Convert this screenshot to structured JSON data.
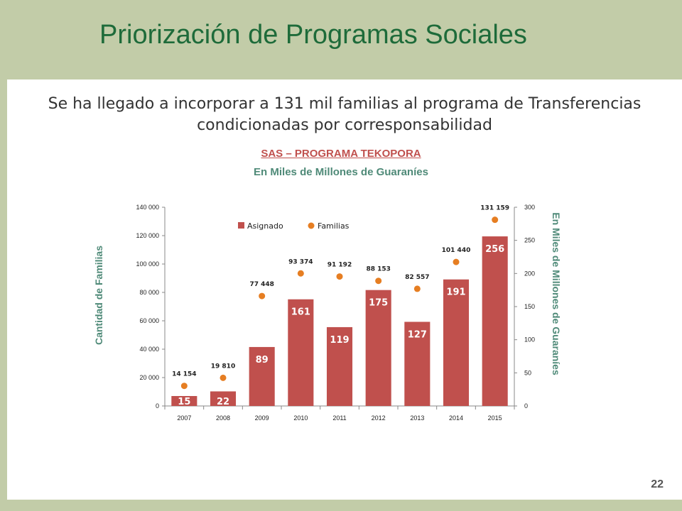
{
  "slide": {
    "title": "Priorización de Programas Sociales",
    "subtitle": "Se ha llegado a incorporar a 131 mil familias al programa de Transferencias condicionadas por corresponsabilidad",
    "page_number": "22"
  },
  "colors": {
    "band": "#c2cca8",
    "title": "#1e6b3a",
    "bar": "#c0504d",
    "point": "#e67e22",
    "axis_label": "#4f8a78"
  },
  "chart_data": {
    "type": "bar",
    "title": "SAS – PROGRAMA TEKOPORA",
    "subtitle": "En Miles de Millones de Guaraníes",
    "categories": [
      "2007",
      "2008",
      "2009",
      "2010",
      "2011",
      "2012",
      "2013",
      "2014",
      "2015"
    ],
    "series": [
      {
        "name": "Asignado",
        "kind": "bar",
        "axis": "right",
        "values": [
          15,
          22,
          89,
          161,
          119,
          175,
          127,
          191,
          256
        ],
        "labels": [
          "15",
          "22",
          "89",
          "161",
          "119",
          "175",
          "127",
          "191",
          "256"
        ]
      },
      {
        "name": "Familias",
        "kind": "scatter",
        "axis": "left",
        "values": [
          14154,
          19810,
          77448,
          93374,
          91192,
          88153,
          82557,
          101440,
          131159
        ],
        "labels": [
          "14 154",
          "19 810",
          "77 448",
          "93 374",
          "91 192",
          "88 153",
          "82 557",
          "101 440",
          "131 159"
        ]
      }
    ],
    "ylabel": "Cantidad de Familias",
    "y2label": "En Miles de Millones de Guaraníes",
    "ylim": [
      0,
      140000
    ],
    "y2lim": [
      0,
      300
    ],
    "yticks": [
      "0",
      "20 000",
      "40 000",
      "60 000",
      "80 000",
      "100 000",
      "120 000",
      "140 000"
    ],
    "y2ticks": [
      "0",
      "50",
      "100",
      "150",
      "200",
      "250",
      "300"
    ],
    "legend_position": "top-left",
    "grid": false
  }
}
